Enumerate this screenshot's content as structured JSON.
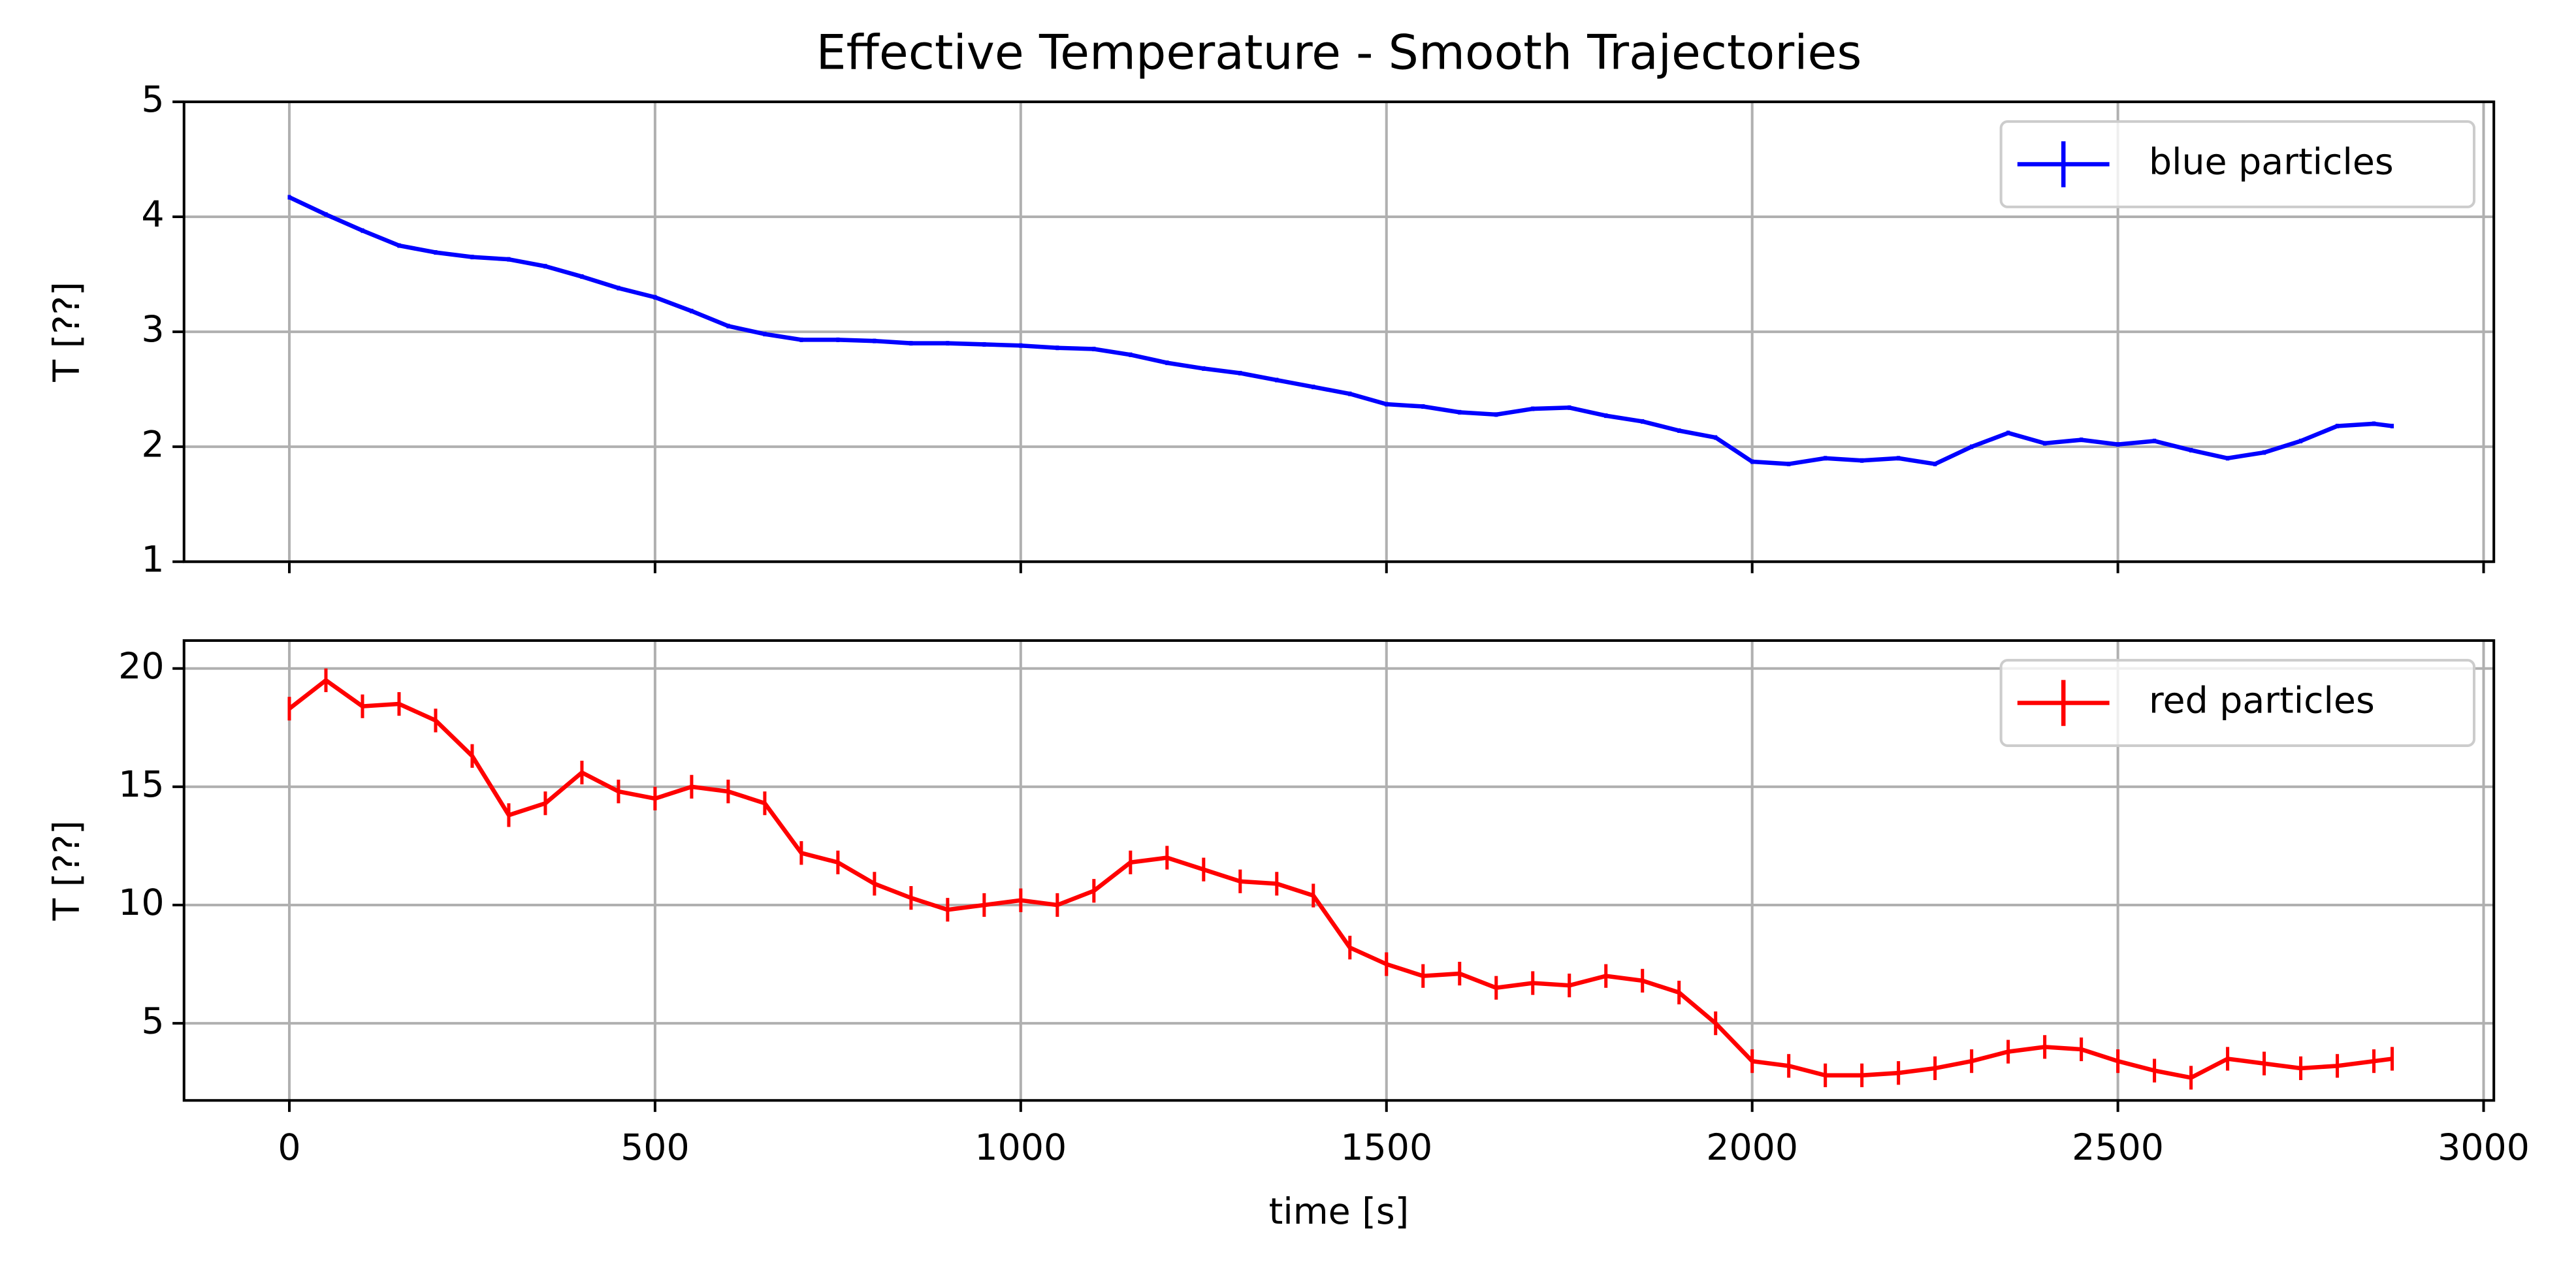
{
  "chart_data": [
    {
      "type": "line",
      "title": "Effective Temperature - Smooth Trajectories",
      "ylabel": "T [??]",
      "x": [
        0,
        50,
        100,
        150,
        200,
        250,
        300,
        350,
        400,
        450,
        500,
        550,
        600,
        650,
        700,
        750,
        800,
        850,
        900,
        950,
        1000,
        1050,
        1100,
        1150,
        1200,
        1250,
        1300,
        1350,
        1400,
        1450,
        1500,
        1550,
        1600,
        1650,
        1700,
        1750,
        1800,
        1850,
        1900,
        1950,
        2000,
        2050,
        2100,
        2150,
        2200,
        2250,
        2300,
        2350,
        2400,
        2450,
        2500,
        2550,
        2600,
        2650,
        2700,
        2750,
        2800,
        2850,
        2875
      ],
      "series": [
        {
          "name": "blue particles",
          "color": "#0000ff",
          "yerr": 0.02,
          "values": [
            4.17,
            4.02,
            3.88,
            3.75,
            3.69,
            3.65,
            3.63,
            3.57,
            3.48,
            3.38,
            3.3,
            3.18,
            3.05,
            2.98,
            2.93,
            2.93,
            2.92,
            2.9,
            2.9,
            2.89,
            2.88,
            2.86,
            2.85,
            2.8,
            2.73,
            2.68,
            2.64,
            2.58,
            2.52,
            2.46,
            2.37,
            2.35,
            2.3,
            2.28,
            2.33,
            2.34,
            2.27,
            2.22,
            2.14,
            2.08,
            1.87,
            1.85,
            1.9,
            1.88,
            1.9,
            1.85,
            2.0,
            2.12,
            2.03,
            2.06,
            2.02,
            2.05,
            1.97,
            1.9,
            1.95,
            2.05,
            2.18,
            2.2,
            2.18
          ]
        }
      ],
      "xlim": [
        -144,
        3014
      ],
      "xticks": [
        0,
        500,
        1000,
        1500,
        2000,
        2500,
        3000
      ],
      "show_xtick_labels": false,
      "ylim": [
        1,
        5
      ],
      "yticks": [
        1,
        2,
        3,
        4,
        5
      ],
      "grid": true,
      "legend": "upper right"
    },
    {
      "type": "line",
      "ylabel": "T [??]",
      "xlabel": "time [s]",
      "x": [
        0,
        50,
        100,
        150,
        200,
        250,
        300,
        350,
        400,
        450,
        500,
        550,
        600,
        650,
        700,
        750,
        800,
        850,
        900,
        950,
        1000,
        1050,
        1100,
        1150,
        1200,
        1250,
        1300,
        1350,
        1400,
        1450,
        1500,
        1550,
        1600,
        1650,
        1700,
        1750,
        1800,
        1850,
        1900,
        1950,
        2000,
        2050,
        2100,
        2150,
        2200,
        2250,
        2300,
        2350,
        2400,
        2450,
        2500,
        2550,
        2600,
        2650,
        2700,
        2750,
        2800,
        2850,
        2875
      ],
      "series": [
        {
          "name": "red particles",
          "color": "#ff0000",
          "yerr": 0.5,
          "values": [
            18.3,
            19.5,
            18.4,
            18.5,
            17.8,
            16.3,
            13.8,
            14.3,
            15.6,
            14.8,
            14.5,
            15.0,
            14.8,
            14.3,
            12.2,
            11.8,
            10.9,
            10.3,
            9.8,
            10.0,
            10.2,
            10.0,
            10.6,
            11.8,
            12.0,
            11.5,
            11.0,
            10.9,
            10.4,
            8.2,
            7.5,
            7.0,
            7.1,
            6.5,
            6.7,
            6.6,
            7.0,
            6.8,
            6.3,
            5.0,
            3.4,
            3.2,
            2.8,
            2.8,
            2.9,
            3.1,
            3.4,
            3.8,
            4.0,
            3.9,
            3.4,
            3.0,
            2.7,
            3.5,
            3.3,
            3.1,
            3.2,
            3.4,
            3.5
          ]
        }
      ],
      "xlim": [
        -144,
        3014
      ],
      "xticks": [
        0,
        500,
        1000,
        1500,
        2000,
        2500,
        3000
      ],
      "show_xtick_labels": true,
      "ylim": [
        1.74,
        21.18
      ],
      "yticks": [
        5,
        10,
        15,
        20
      ],
      "grid": true,
      "legend": "upper right"
    }
  ]
}
